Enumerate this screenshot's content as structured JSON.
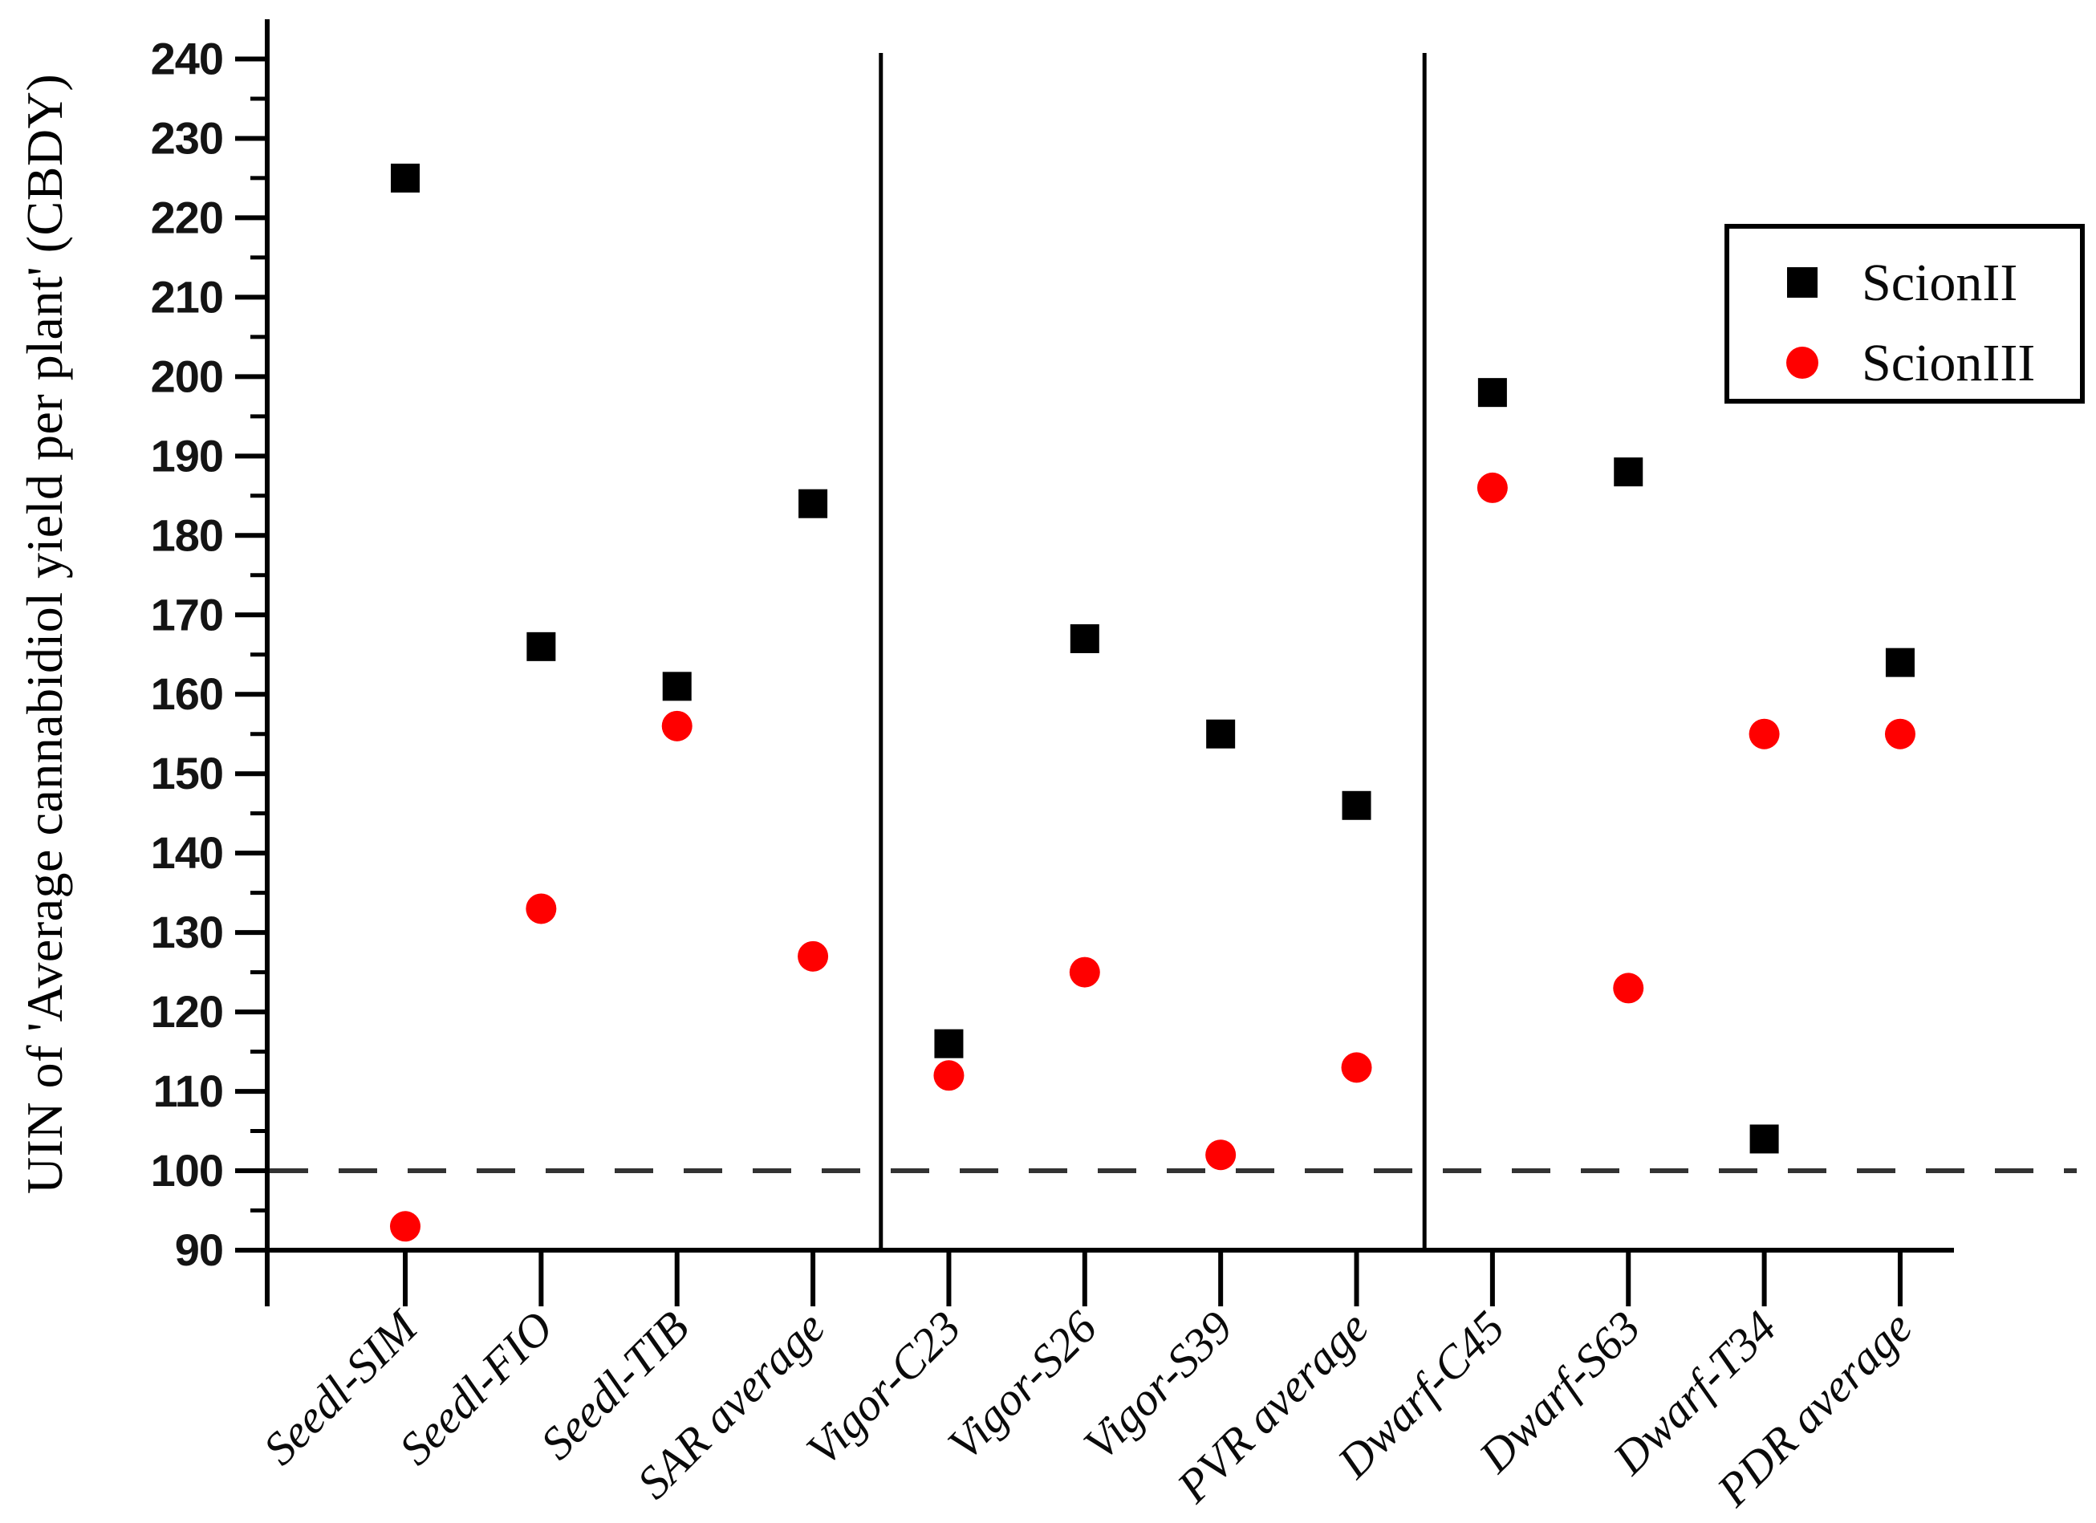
{
  "figure": {
    "background": "#ffffff"
  },
  "chart_data": {
    "type": "scatter",
    "title": "",
    "xlabel": "",
    "ylabel": "UIN of 'Average cannabidiol yield per plant' (CBDY)",
    "ylim": [
      90,
      245
    ],
    "y_tick_start": 90,
    "y_tick_end": 240,
    "y_major_step": 10,
    "y_minor_step": 5,
    "grid": false,
    "legend_position": "top-right",
    "categories": [
      "Seedl-SIM",
      "Seedl-FIO",
      "Seedl-TIB",
      "SAR average",
      "Vigor-C23",
      "Vigor-S26",
      "Vigor-S39",
      "PVR average",
      "Dwarf-C45",
      "Dwarf-S63",
      "Dwarf-T34",
      "PDR average"
    ],
    "series": [
      {
        "name": "ScionII",
        "marker": "square",
        "color": "#000000",
        "values": [
          225,
          166,
          161,
          184,
          116,
          167,
          155,
          146,
          198,
          188,
          104,
          164
        ]
      },
      {
        "name": "ScionIII",
        "marker": "circle",
        "color": "#ff0000",
        "values": [
          93,
          133,
          156,
          127,
          112,
          125,
          102,
          113,
          186,
          123,
          155,
          155
        ]
      }
    ],
    "reference_line": {
      "y": 100,
      "style": "dashed",
      "color": "#333333"
    },
    "group_separators_after_index": [
      3,
      7
    ]
  },
  "legend": {
    "entries": [
      {
        "label": "ScionII",
        "marker": "square",
        "color": "#000000"
      },
      {
        "label": "ScionIII",
        "marker": "circle",
        "color": "#ff0000"
      }
    ]
  }
}
